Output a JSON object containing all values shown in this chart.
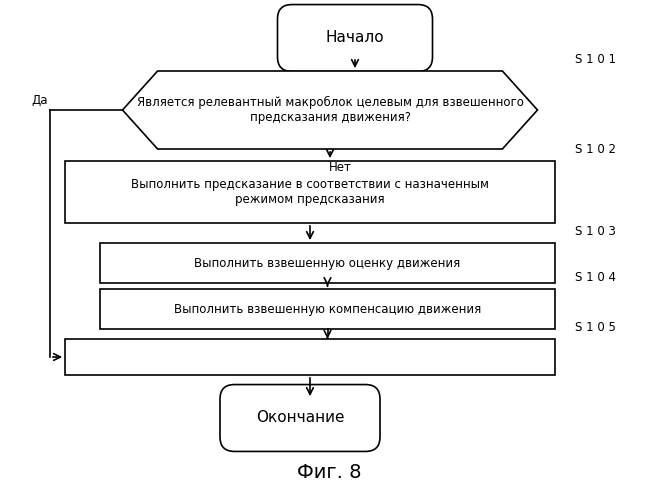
{
  "title": "Фиг. 8",
  "bg_color": "#ffffff",
  "start_text": "Начало",
  "end_text": "Окончание",
  "diamond_text": "Является релевантный макроблок целевым для взвешенного\nпредсказания движения?",
  "s102_text": "Выполнить предсказание в соответствии с назначенным\nрежимом предсказания",
  "s103_text": "Выполнить взвешенную оценку движения",
  "s104_text": "Выполнить взвешенную компенсацию движения",
  "s105_text": "",
  "yes_label": "Да",
  "no_label": "Нет",
  "labels": {
    "s101": "S 1 0 1",
    "s102": "S 1 0 2",
    "s103": "S 1 0 3",
    "s104": "S 1 0 4",
    "s105": "S 1 0 5"
  },
  "lw": 1.2,
  "fs_main": 8.5,
  "fs_title": 14,
  "fs_label": 8.5
}
